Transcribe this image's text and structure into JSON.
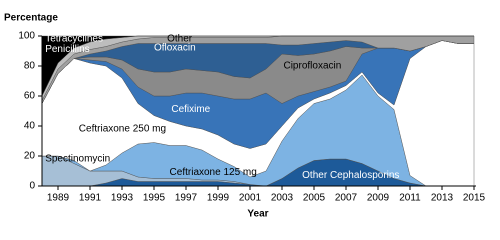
{
  "chart_data": {
    "type": "stacked-area",
    "y_label": "Percentage",
    "x_label": "Year",
    "x": [
      1988,
      1989,
      1990,
      1991,
      1992,
      1993,
      1994,
      1995,
      1996,
      1997,
      1998,
      1999,
      2000,
      2001,
      2002,
      2003,
      2004,
      2005,
      2006,
      2007,
      2008,
      2009,
      2010,
      2011,
      2012,
      2013,
      2014,
      2015
    ],
    "xlim": [
      1988,
      2015
    ],
    "xticks": [
      1989,
      1991,
      1993,
      1995,
      1997,
      1999,
      2001,
      2003,
      2005,
      2007,
      2009,
      2011,
      2013,
      2015
    ],
    "ylim": [
      0,
      100
    ],
    "yticks": [
      0,
      20,
      40,
      60,
      80,
      100
    ],
    "series": [
      {
        "name": "Other Cephalosporins",
        "color": "#1d5a99",
        "values": [
          0,
          0,
          0,
          0,
          2,
          5,
          3,
          3,
          3,
          3,
          3,
          3,
          2,
          1,
          0,
          5,
          12,
          17,
          18,
          18,
          15,
          10,
          5,
          2,
          0,
          0,
          0,
          0
        ]
      },
      {
        "name": "Spectinomycin",
        "color": "#a6bfd6",
        "values": [
          20,
          20,
          15,
          10,
          8,
          5,
          3,
          2,
          2,
          2,
          1,
          1,
          1,
          0,
          0,
          0,
          0,
          0,
          0,
          0,
          0,
          0,
          0,
          0,
          0,
          0,
          0,
          0
        ]
      },
      {
        "name": "Ceftriaxone 125 mg",
        "color": "#7db3e3",
        "values": [
          0,
          0,
          2,
          0,
          4,
          12,
          22,
          24,
          22,
          22,
          20,
          14,
          10,
          5,
          10,
          25,
          33,
          38,
          40,
          46,
          59,
          50,
          46,
          5,
          0,
          0,
          0,
          0
        ]
      },
      {
        "name": "Ceftriaxone 250 mg",
        "color": "#ffffff",
        "values": [
          35,
          55,
          68,
          72,
          66,
          50,
          27,
          18,
          16,
          13,
          14,
          16,
          15,
          19,
          18,
          10,
          7,
          3,
          4,
          3,
          2,
          2,
          3,
          78,
          93,
          97,
          95,
          95
        ]
      },
      {
        "name": "Cefixime",
        "color": "#3874b8",
        "values": [
          0,
          0,
          0,
          2,
          3,
          6,
          11,
          13,
          17,
          22,
          24,
          26,
          30,
          33,
          34,
          15,
          8,
          5,
          4,
          3,
          12,
          30,
          38,
          5,
          0,
          0,
          0,
          0
        ]
      },
      {
        "name": "Ciprofloxacin",
        "color": "#8a8a8a",
        "values": [
          0,
          0,
          0,
          2,
          3,
          6,
          12,
          16,
          16,
          16,
          15,
          16,
          15,
          14,
          16,
          33,
          27,
          25,
          24,
          23,
          4,
          0,
          0,
          0,
          0,
          0,
          0,
          0
        ]
      },
      {
        "name": "Ofloxacin",
        "color": "#2e5f93",
        "values": [
          0,
          0,
          0,
          2,
          4,
          9,
          17,
          19,
          19,
          17,
          18,
          19,
          22,
          23,
          17,
          6,
          7,
          7,
          6,
          4,
          4,
          0,
          0,
          0,
          0,
          0,
          0,
          0
        ]
      },
      {
        "name": "Other",
        "color": "#a0a0a0",
        "values": [
          2,
          3,
          3,
          3,
          3,
          3,
          3,
          4,
          4,
          4,
          4,
          4,
          4,
          4,
          4,
          6,
          6,
          5,
          4,
          3,
          4,
          8,
          8,
          10,
          7,
          3,
          5,
          5
        ]
      },
      {
        "name": "Tetracyclines",
        "color": "#bdbdbd",
        "values": [
          3,
          4,
          4,
          5,
          5,
          3,
          2,
          1,
          1,
          1,
          1,
          1,
          1,
          1,
          1,
          0,
          0,
          0,
          0,
          0,
          0,
          0,
          0,
          0,
          0,
          0,
          0,
          0
        ]
      },
      {
        "name": "Penicillins",
        "color": "#000000",
        "values": [
          40,
          18,
          8,
          4,
          2,
          1,
          0,
          0,
          0,
          0,
          0,
          0,
          0,
          0,
          0,
          0,
          0,
          0,
          0,
          0,
          0,
          0,
          0,
          0,
          0,
          0,
          0,
          0
        ]
      }
    ]
  }
}
